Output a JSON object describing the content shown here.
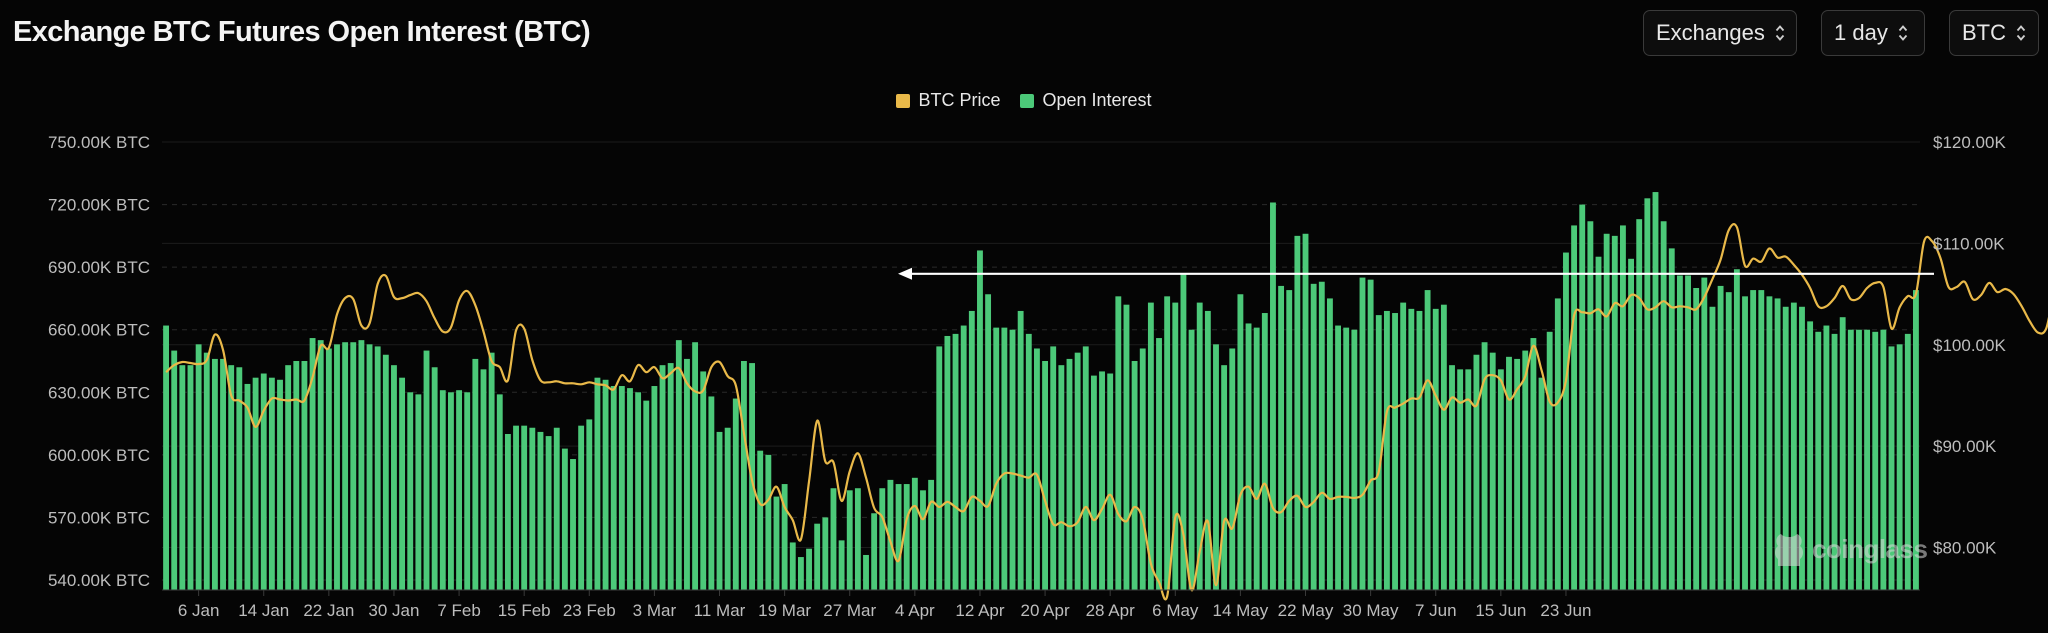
{
  "header": {
    "title": "Exchange BTC Futures Open Interest (BTC)",
    "controls": [
      {
        "name": "exchanges-select",
        "label": "Exchanges"
      },
      {
        "name": "interval-select",
        "label": "1 day"
      },
      {
        "name": "coin-select",
        "label": "BTC"
      }
    ]
  },
  "watermark": "coinglass",
  "colors": {
    "background": "#050505",
    "open_interest": "#4cc979",
    "btc_price": "#e9b949",
    "grid": "#2a2a2a",
    "axis_text": "#bdbdbd",
    "reference_arrow": "#ffffff"
  },
  "chart_data": {
    "type": "bar",
    "title": "Exchange BTC Futures Open Interest (BTC)",
    "legend_position": "top-center",
    "grid": true,
    "x_tick_labels": [
      "6 Jan",
      "14 Jan",
      "22 Jan",
      "30 Jan",
      "7 Feb",
      "15 Feb",
      "23 Feb",
      "3 Mar",
      "11 Mar",
      "19 Mar",
      "27 Mar",
      "4 Apr",
      "12 Apr",
      "20 Apr",
      "28 Apr",
      "6 May",
      "14 May",
      "22 May",
      "30 May",
      "7 Jun",
      "15 Jun",
      "23 Jun"
    ],
    "y_left": {
      "ticks": [
        "540.00K BTC",
        "570.00K BTC",
        "600.00K BTC",
        "630.00K BTC",
        "660.00K BTC",
        "690.00K BTC",
        "720.00K BTC",
        "750.00K BTC"
      ],
      "min": 540000,
      "max": 750000
    },
    "y_right": {
      "ticks": [
        "$80.00K",
        "$90.00K",
        "$100.00K",
        "$110.00K",
        "$120.00K"
      ],
      "min": 76800,
      "max": 120000
    },
    "reference_line": {
      "series": "BTC Price",
      "value": 107000,
      "from": "19 Mar",
      "to": "24 Jun",
      "style": "arrow-left"
    },
    "series": [
      {
        "name": "Open Interest",
        "type": "bar",
        "axis": "left",
        "start_date": "2 Jan",
        "values": [
          662000,
          650000,
          643000,
          643000,
          653000,
          649000,
          646000,
          646000,
          643000,
          642000,
          634000,
          637000,
          639000,
          637000,
          636000,
          643000,
          645000,
          645000,
          656000,
          655000,
          651000,
          653000,
          654000,
          654000,
          655000,
          653000,
          652000,
          648000,
          643000,
          637000,
          630000,
          629000,
          650000,
          642000,
          631000,
          630000,
          631000,
          630000,
          646000,
          641000,
          649000,
          629000,
          610000,
          614000,
          614000,
          613000,
          611000,
          609000,
          613000,
          603000,
          598000,
          614000,
          617000,
          637000,
          636000,
          633000,
          633000,
          632000,
          630000,
          626000,
          633000,
          643000,
          644000,
          655000,
          646000,
          654000,
          640000,
          628000,
          611000,
          613000,
          627000,
          645000,
          644000,
          602000,
          600000,
          580000,
          586000,
          558000,
          551000,
          555000,
          567000,
          570000,
          584000,
          559000,
          583000,
          584000,
          552000,
          572000,
          584000,
          588000,
          586000,
          586000,
          589000,
          583000,
          588000,
          652000,
          657000,
          658000,
          662000,
          669000,
          698000,
          677000,
          661000,
          661000,
          660000,
          669000,
          658000,
          651000,
          645000,
          652000,
          643000,
          646000,
          649000,
          652000,
          638000,
          640000,
          639000,
          676000,
          672000,
          645000,
          651000,
          673000,
          656000,
          676000,
          673000,
          687000,
          660000,
          673000,
          669000,
          653000,
          643000,
          651000,
          677000,
          663000,
          661000,
          668000,
          721000,
          681000,
          679000,
          705000,
          706000,
          682000,
          683000,
          675000,
          662000,
          661000,
          660000,
          685000,
          684000,
          667000,
          669000,
          668000,
          673000,
          670000,
          669000,
          679000,
          670000,
          672000,
          643000,
          641000,
          641000,
          648000,
          654000,
          649000,
          641000,
          647000,
          646000,
          650000,
          656000,
          637000,
          659000,
          675000,
          697000,
          710000,
          720000,
          712000,
          695000,
          706000,
          705000,
          710000,
          694000,
          713000,
          723000,
          726000,
          712000,
          699000,
          686000,
          686000,
          680000,
          685000,
          671000,
          681000,
          678000,
          689000,
          676000,
          679000,
          679000,
          676000,
          675000,
          671000,
          673000,
          671000,
          664000,
          659000,
          662000,
          658000,
          666000,
          660000,
          660000,
          660000,
          659000,
          660000,
          652000,
          653000,
          658000,
          679000
        ]
      },
      {
        "name": "BTC Price",
        "type": "line",
        "axis": "right",
        "start_date": "2 Jan",
        "values": [
          97300,
          98000,
          98300,
          98200,
          98100,
          98500,
          101000,
          99500,
          95000,
          94500,
          93800,
          91900,
          93500,
          94700,
          94600,
          94500,
          94600,
          94500,
          96800,
          99900,
          99700,
          103000,
          104600,
          104500,
          101900,
          102100,
          106000,
          106800,
          104700,
          104600,
          104900,
          105100,
          104300,
          102600,
          101300,
          101700,
          104400,
          105300,
          103900,
          101300,
          98400,
          97800,
          96500,
          101400,
          101600,
          98500,
          96500,
          96300,
          96400,
          96200,
          96200,
          96100,
          96300,
          96100,
          96000,
          95600,
          97000,
          96400,
          98000,
          97300,
          97800,
          96700,
          97200,
          97700,
          96200,
          95400,
          95500,
          97800,
          98300,
          96900,
          96000,
          91300,
          86600,
          84300,
          84700,
          86000,
          84000,
          82700,
          80800,
          86500,
          92500,
          88500,
          88400,
          84600,
          87500,
          89300,
          86900,
          83900,
          83000,
          80600,
          78700,
          82800,
          84100,
          82800,
          84500,
          84000,
          84500,
          84000,
          83600,
          85000,
          84600,
          84100,
          86300,
          87300,
          87300,
          87100,
          86900,
          87200,
          84600,
          82300,
          82500,
          82100,
          82500,
          84000,
          82700,
          83800,
          85200,
          83300,
          82600,
          84000,
          82800,
          78400,
          76600,
          75200,
          83000,
          81300,
          75800,
          79600,
          82600,
          76300,
          82600,
          81900,
          85200,
          86000,
          84800,
          86300,
          83900,
          83500,
          84600,
          85100,
          84000,
          84500,
          85400,
          84800,
          85000,
          85000,
          84900,
          85200,
          86600,
          87500,
          93400,
          93800,
          94200,
          94700,
          94800,
          96500,
          95000,
          93600,
          94800,
          94300,
          94600,
          94000,
          96600,
          97000,
          96500,
          94600,
          95600,
          96900,
          99900,
          97500,
          94400,
          94300,
          96500,
          102900,
          103200,
          103100,
          103500,
          102800,
          104100,
          103800,
          104900,
          104600,
          103500,
          103700,
          104300,
          103700,
          103800,
          103700,
          103500,
          104700,
          106500,
          108400,
          111300,
          111600,
          107800,
          108500,
          108200,
          109500,
          108600,
          108700,
          107900,
          106900,
          105600,
          103800,
          103800,
          104600,
          105800,
          104500,
          104600,
          105600,
          106100,
          105700,
          101600,
          103700,
          104800,
          105000,
          110200,
          110200,
          108600,
          105700,
          105700,
          106200,
          104500,
          104900,
          106100,
          105200,
          105500,
          105000,
          103800,
          102300,
          101200,
          101600,
          105100,
          106000,
          106900,
          108000
        ]
      }
    ]
  }
}
